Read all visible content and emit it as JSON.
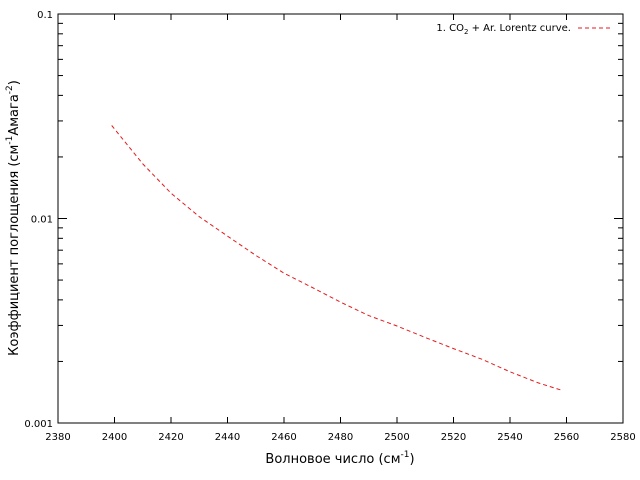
{
  "chart_data": {
    "type": "line",
    "x_axis": {
      "label": "Волновое число (см",
      "label_sup": "-1",
      "label_end": ")",
      "range": [
        2380,
        2580
      ],
      "ticks": [
        2380,
        2400,
        2420,
        2440,
        2460,
        2480,
        2500,
        2520,
        2540,
        2560,
        2580
      ]
    },
    "y_axis": {
      "label": "Коэффициент поглощения (см",
      "label_sup1": "-1",
      "label_mid": "Амага",
      "label_sup2": "-2",
      "label_end": ")",
      "scale": "log",
      "range": [
        0.001,
        0.1
      ],
      "ticks": [
        {
          "value": 0.001,
          "label": "0.001"
        },
        {
          "value": 0.01,
          "label": "0.01"
        },
        {
          "value": 0.1,
          "label": "0.1"
        }
      ]
    },
    "grid": false,
    "legend_position": "top-right",
    "series": [
      {
        "name_pre": "1. CO",
        "name_sub": "2",
        "name_post": " + Ar. Lorentz curve.",
        "color": "#e41a1c",
        "line_style": "dashed",
        "x": [
          2399,
          2410,
          2420,
          2430,
          2440,
          2450,
          2460,
          2470,
          2480,
          2490,
          2500,
          2510,
          2520,
          2530,
          2540,
          2550,
          2558
        ],
        "y": [
          0.0285,
          0.0185,
          0.0133,
          0.0102,
          0.0082,
          0.0066,
          0.0054,
          0.0046,
          0.0039,
          0.00335,
          0.00298,
          0.00262,
          0.00231,
          0.00205,
          0.00178,
          0.00157,
          0.00145
        ]
      }
    ]
  }
}
